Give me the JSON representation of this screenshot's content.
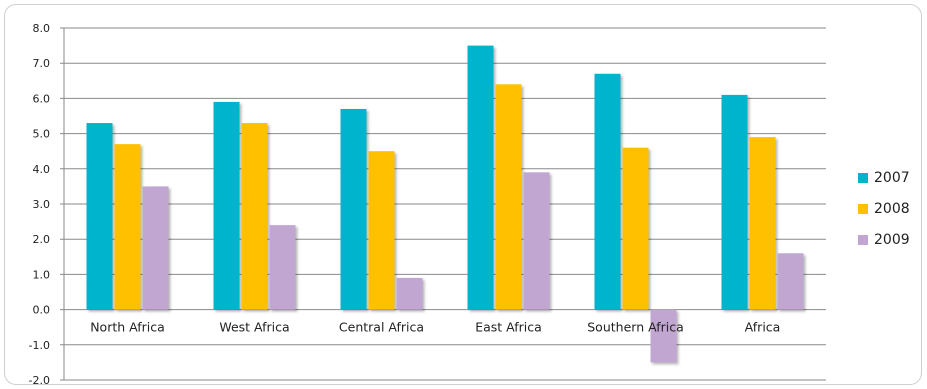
{
  "chart_data": {
    "type": "bar",
    "categories": [
      "North Africa",
      "West Africa",
      "Central Africa",
      "East Africa",
      "Southern Africa",
      "Africa"
    ],
    "series": [
      {
        "name": "2007",
        "color": "#00B4CE",
        "values": [
          5.3,
          5.9,
          5.7,
          7.5,
          6.7,
          6.1
        ]
      },
      {
        "name": "2008",
        "color": "#FFC000",
        "values": [
          4.7,
          5.3,
          4.5,
          6.4,
          4.6,
          4.9
        ]
      },
      {
        "name": "2009",
        "color": "#C0A6D0",
        "values": [
          3.5,
          2.4,
          0.9,
          3.9,
          -1.5,
          1.6
        ]
      }
    ],
    "ylim": [
      -2.0,
      8.0
    ],
    "ytick_labels": [
      "-2.0",
      "-1.0",
      "0.0",
      "1.0",
      "2.0",
      "3.0",
      "4.0",
      "5.0",
      "6.0",
      "7.0",
      "8.0"
    ],
    "title": "",
    "xlabel": "",
    "ylabel": "",
    "grid": "horizontal",
    "legend_position": "right"
  }
}
